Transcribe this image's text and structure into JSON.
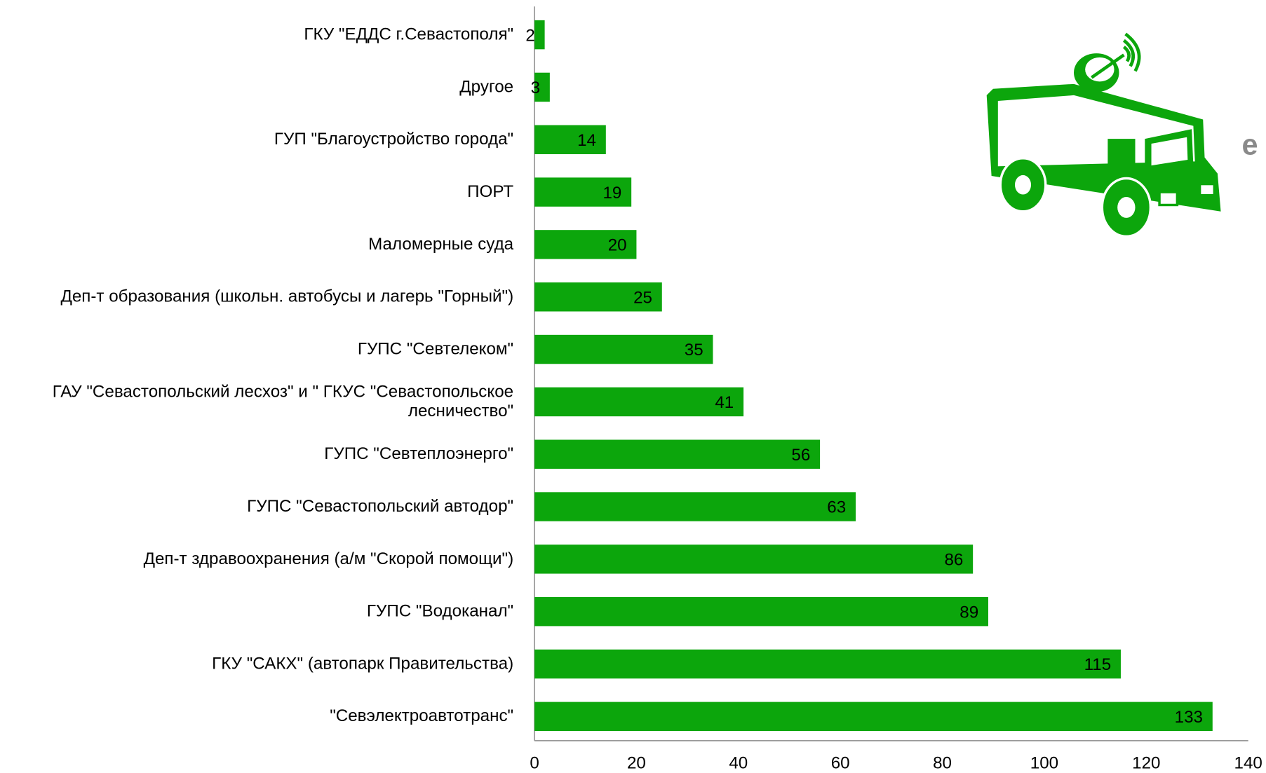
{
  "chart_data": {
    "type": "bar",
    "orientation": "horizontal",
    "categories": [
      "ГКУ \"ЕДДС г.Севастополя\"",
      "Другое",
      "ГУП \"Благоустройство города\"",
      "ПОРТ",
      "Маломерные суда",
      "Деп-т образования (школьн. автобусы и лагерь \"Горный\")",
      "ГУПС \"Севтелеком\"",
      "ГАУ \"Севастопольский лесхоз\" и \" ГКУС \"Севастопольское лесничество\"",
      "ГУПС \"Севтеплоэнерго\"",
      "ГУПС \"Севастопольский автодор\"",
      "Деп-т здравоохранения (а/м \"Скорой помощи\")",
      "ГУПС \"Водоканал\"",
      "ГКУ \"САКХ\" (автопарк Правительства)",
      "\"Севэлектроавтотранс\""
    ],
    "values": [
      2,
      3,
      14,
      19,
      20,
      25,
      35,
      41,
      56,
      63,
      86,
      89,
      115,
      133
    ],
    "color": "#0ca60c",
    "xlim": [
      0,
      140
    ],
    "xticks": [
      0,
      20,
      40,
      60,
      80,
      100,
      120,
      140
    ],
    "grid": false,
    "annotation": "е"
  }
}
